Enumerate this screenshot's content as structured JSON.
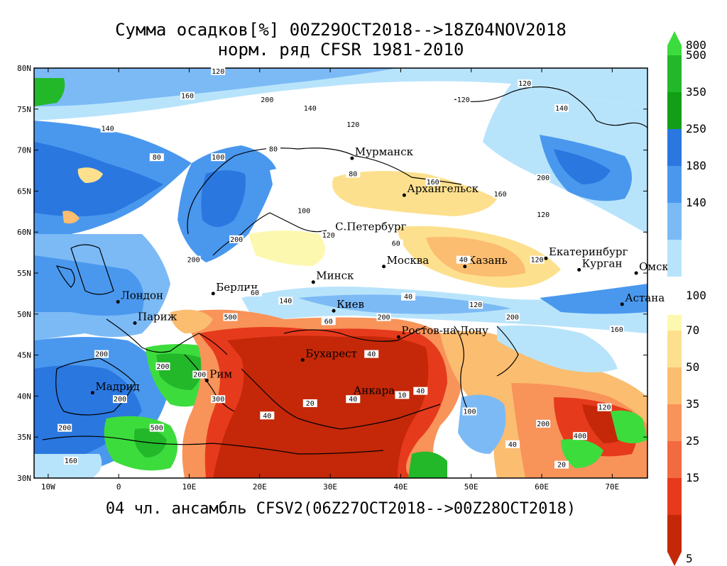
{
  "title_line1": "Сумма осадков[%] 00Z29OCT2018-->18Z04NOV2018",
  "title_line2": "норм. ряд CFSR 1981-2010",
  "subtitle": "04 чл. ансамбль CFSV2(06Z27OCT2018-->00Z28OCT2018)",
  "axes": {
    "lon_labels": [
      "10W",
      "0",
      "10E",
      "20E",
      "30E",
      "40E",
      "50E",
      "60E",
      "70E"
    ],
    "lon_values": [
      -10,
      0,
      10,
      20,
      30,
      40,
      50,
      60,
      70
    ],
    "lat_labels": [
      "80N",
      "75N",
      "70N",
      "65N",
      "60N",
      "55N",
      "50N",
      "45N",
      "40N",
      "35N",
      "30N"
    ],
    "lat_values": [
      80,
      75,
      70,
      65,
      60,
      55,
      50,
      45,
      40,
      35,
      30
    ],
    "lon_range": [
      -12,
      75
    ],
    "lat_range": [
      30,
      80
    ]
  },
  "cities": [
    {
      "name": "Мурманск",
      "lon": 33.1,
      "lat": 69.0
    },
    {
      "name": "Архангельск",
      "lon": 40.5,
      "lat": 64.5
    },
    {
      "name": "С.Петербург",
      "lon": 30.3,
      "lat": 59.9
    },
    {
      "name": "Москва",
      "lon": 37.6,
      "lat": 55.8
    },
    {
      "name": "Казань",
      "lon": 49.1,
      "lat": 55.8
    },
    {
      "name": "Екатеринбург",
      "lon": 60.6,
      "lat": 56.8
    },
    {
      "name": "Курган",
      "lon": 65.3,
      "lat": 55.4
    },
    {
      "name": "Омск",
      "lon": 73.4,
      "lat": 55.0
    },
    {
      "name": "Астана",
      "lon": 71.4,
      "lat": 51.2
    },
    {
      "name": "Минск",
      "lon": 27.6,
      "lat": 53.9
    },
    {
      "name": "Берлин",
      "lon": 13.4,
      "lat": 52.5
    },
    {
      "name": "Лондон",
      "lon": -0.1,
      "lat": 51.5
    },
    {
      "name": "Париж",
      "lon": 2.3,
      "lat": 48.9
    },
    {
      "name": "Киев",
      "lon": 30.5,
      "lat": 50.4
    },
    {
      "name": "Ростов-на-Дону",
      "lon": 39.7,
      "lat": 47.2
    },
    {
      "name": "Бухарест",
      "lon": 26.1,
      "lat": 44.4
    },
    {
      "name": "Рим",
      "lon": 12.5,
      "lat": 41.9
    },
    {
      "name": "Мадрид",
      "lon": -3.7,
      "lat": 40.4
    },
    {
      "name": "Анкара",
      "lon": 32.9,
      "lat": 39.9
    }
  ],
  "contour_labels": [
    "120",
    "160",
    "200",
    "140",
    "80",
    "100",
    "60",
    "40",
    "20",
    "10",
    "300",
    "400",
    "500"
  ],
  "colorbar": {
    "upper": [
      {
        "label": "800",
        "color": "#3ddc3d"
      },
      {
        "label": "500",
        "color": "#22b82a"
      },
      {
        "label": "350",
        "color": "#129e16"
      },
      {
        "label": "250",
        "color": "#2a77e0"
      },
      {
        "label": "180",
        "color": "#4a98ee"
      },
      {
        "label": "140",
        "color": "#7cbaf6"
      },
      {
        "label": "",
        "color": "#b8e4fb"
      }
    ],
    "mid_label": "100",
    "lower": [
      {
        "label": "70",
        "color": "#fdf8b0"
      },
      {
        "label": "50",
        "color": "#fde08e"
      },
      {
        "label": "35",
        "color": "#fbbd70"
      },
      {
        "label": "25",
        "color": "#f8935a"
      },
      {
        "label": "15",
        "color": "#f26a40"
      },
      {
        "label": "",
        "color": "#e63a1c"
      },
      {
        "label": "5",
        "color": "#c42808"
      }
    ]
  }
}
